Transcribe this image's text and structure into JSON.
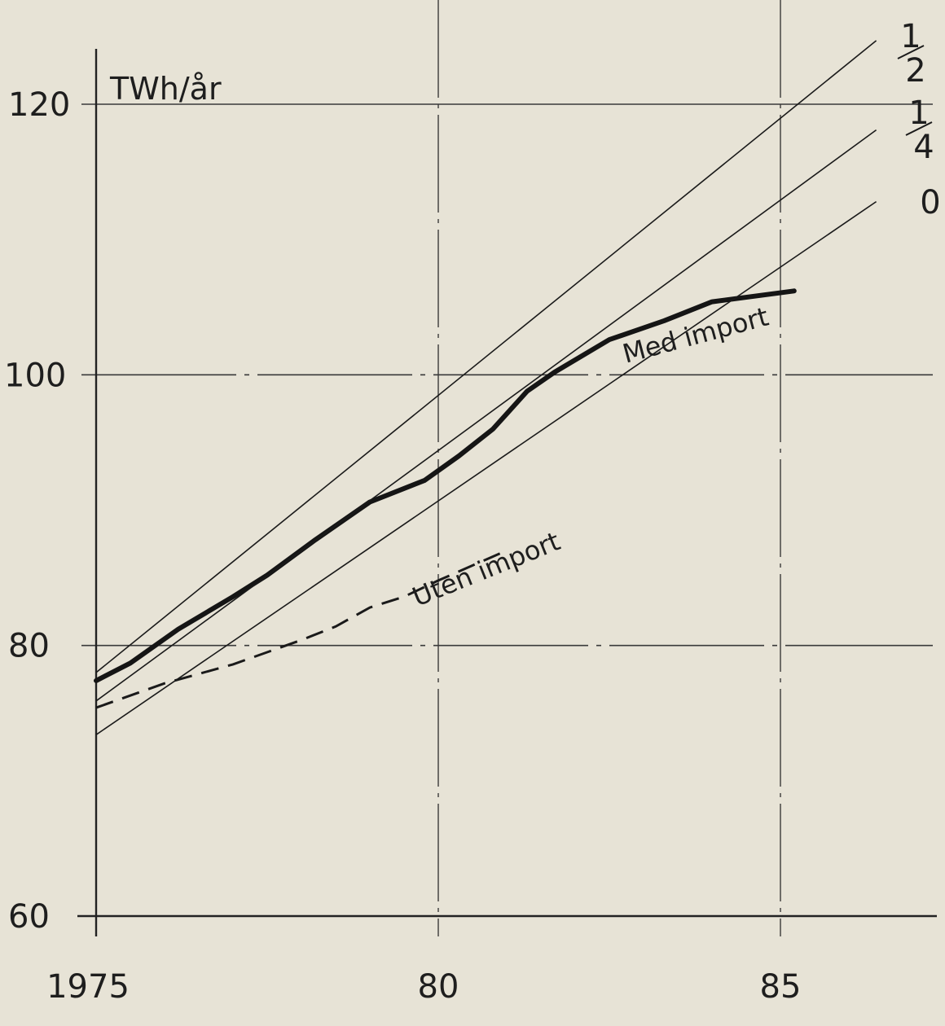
{
  "chart_data": {
    "type": "line",
    "ylabel": "TWh/år",
    "xlim": [
      1975,
      85.5
    ],
    "ylim": [
      60,
      120
    ],
    "x_ticks": [
      {
        "value": 1975,
        "label": "1975"
      },
      {
        "value": 1980,
        "label": "80"
      },
      {
        "value": 1985,
        "label": "85"
      }
    ],
    "y_ticks": [
      {
        "value": 60,
        "label": "60"
      },
      {
        "value": 80,
        "label": "80"
      },
      {
        "value": 100,
        "label": "100"
      },
      {
        "value": 120,
        "label": "120"
      }
    ],
    "grid": true,
    "series": [
      {
        "name": "Med import",
        "style": "thick",
        "points": [
          [
            1975.0,
            77.4
          ],
          [
            1975.5,
            78.7
          ],
          [
            1976.2,
            81.2
          ],
          [
            1977.0,
            83.6
          ],
          [
            1977.5,
            85.2
          ],
          [
            1978.2,
            87.8
          ],
          [
            1979.0,
            90.6
          ],
          [
            1979.8,
            92.2
          ],
          [
            1980.3,
            94.0
          ],
          [
            1980.8,
            96.0
          ],
          [
            1981.3,
            98.8
          ],
          [
            1981.7,
            100.2
          ],
          [
            1982.5,
            102.6
          ],
          [
            1983.3,
            104.0
          ],
          [
            1984.0,
            105.4
          ],
          [
            1985.2,
            106.2
          ]
        ]
      },
      {
        "name": "Uten import",
        "style": "dashed",
        "points": [
          [
            1975.0,
            75.4
          ],
          [
            1976.0,
            77.2
          ],
          [
            1977.0,
            78.6
          ],
          [
            1978.0,
            80.4
          ],
          [
            1978.5,
            81.4
          ],
          [
            1979.0,
            82.8
          ],
          [
            1979.5,
            83.6
          ],
          [
            1980.0,
            84.8
          ],
          [
            1980.9,
            86.8
          ]
        ]
      },
      {
        "name": "1/2",
        "style": "thin",
        "points": [
          [
            1975.0,
            78.0
          ],
          [
            1986.4,
            124.7
          ]
        ]
      },
      {
        "name": "1/4",
        "style": "thin",
        "points": [
          [
            1975.0,
            75.9
          ],
          [
            1986.4,
            118.1
          ]
        ]
      },
      {
        "name": "0",
        "style": "thin",
        "points": [
          [
            1975.0,
            73.4
          ],
          [
            1986.4,
            112.8
          ]
        ]
      }
    ],
    "line_labels": [
      {
        "name": "1/2",
        "label_num": "1",
        "label_den": "2"
      },
      {
        "name": "1/4",
        "label_num": "1",
        "label_den": "4"
      },
      {
        "name": "0",
        "label": "0"
      }
    ],
    "annotations": [
      "Med import",
      "Uten import"
    ]
  }
}
